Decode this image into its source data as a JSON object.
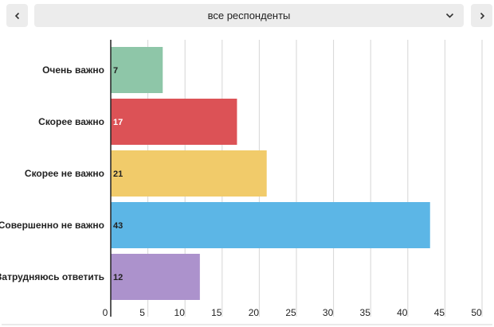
{
  "selector": {
    "selected": "все респонденты",
    "prev_icon": "chevron-left-icon",
    "next_icon": "chevron-right-icon",
    "dropdown_icon": "chevron-down-icon"
  },
  "chart_data": {
    "type": "bar",
    "orientation": "horizontal",
    "categories": [
      "Очень важно",
      "Скорее важно",
      "Скорее не важно",
      "Совершенно не важно",
      "Затрудняюсь ответить"
    ],
    "values": [
      7,
      17,
      21,
      43,
      12
    ],
    "colors": [
      "#8ec6a8",
      "#dc5256",
      "#f1cb6a",
      "#5cb6e6",
      "#ac92cc"
    ],
    "label_colors": [
      "#222222",
      "#ffffff",
      "#222222",
      "#222222",
      "#222222"
    ],
    "xlim": [
      0,
      50
    ],
    "xticks": [
      0,
      5,
      10,
      15,
      20,
      25,
      30,
      35,
      40,
      45,
      50
    ],
    "grid": true
  }
}
